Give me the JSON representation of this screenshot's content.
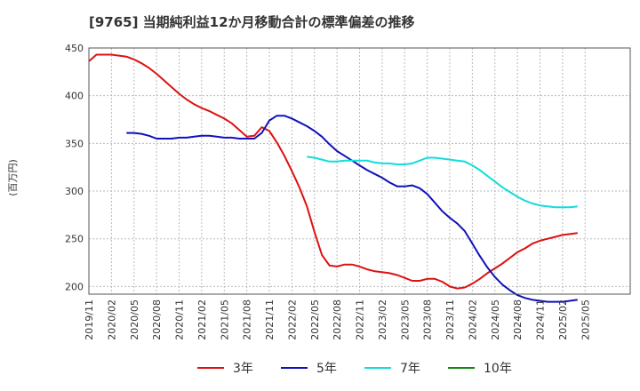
{
  "chart_data": {
    "type": "line",
    "title": "[9765]  当期純利益12か月移動合計の標準偏差の推移",
    "ylabel": "(百万円)",
    "xlabel": "",
    "ylim": [
      192,
      450
    ],
    "yticks": [
      200,
      250,
      300,
      350,
      400,
      450
    ],
    "ytick_labels": [
      "200",
      "250",
      "300",
      "350",
      "400",
      "450"
    ],
    "xlim": [
      0,
      72
    ],
    "x_tick_labels": [
      "2019/11",
      "2020/02",
      "2020/05",
      "2020/08",
      "2020/11",
      "2021/02",
      "2021/05",
      "2021/08",
      "2021/11",
      "2022/02",
      "2022/05",
      "2022/08",
      "2022/11",
      "2023/02",
      "2023/05",
      "2023/08",
      "2023/11",
      "2024/02",
      "2024/05",
      "2024/08",
      "2024/11",
      "2025/02",
      "2025/05"
    ],
    "grid": true,
    "legend_position": "bottom",
    "series": [
      {
        "name": "3年",
        "color": "#dd1111",
        "x": [
          0,
          1,
          2,
          3,
          4,
          5,
          6,
          7,
          8,
          9,
          10,
          11,
          12,
          13,
          14,
          15,
          16,
          17,
          18,
          19,
          20,
          21,
          22,
          23,
          24,
          25,
          26,
          27,
          28,
          29,
          30,
          31,
          32,
          33,
          34,
          35,
          36,
          37,
          38,
          39,
          40,
          41,
          42,
          43,
          44,
          45,
          46,
          47,
          48,
          49,
          50,
          51,
          52,
          53,
          54,
          55,
          56,
          57,
          58,
          59,
          60,
          61,
          62,
          63,
          64,
          65
        ],
        "values": [
          436,
          443,
          443,
          443,
          442,
          441,
          438,
          434,
          429,
          423,
          416,
          409,
          402,
          396,
          391,
          387,
          384,
          380,
          376,
          371,
          364,
          357,
          358,
          367,
          363,
          351,
          337,
          321,
          304,
          284,
          257,
          233,
          222,
          221,
          223,
          223,
          221,
          218,
          216,
          215,
          214,
          212,
          209,
          206,
          206,
          208,
          208,
          205,
          200,
          198,
          199,
          203,
          208,
          214,
          219,
          224,
          230,
          236,
          240,
          245,
          248,
          250,
          252,
          254,
          255,
          256
        ]
      },
      {
        "name": "5年",
        "color": "#1111bb",
        "x": [
          5,
          6,
          7,
          8,
          9,
          10,
          11,
          12,
          13,
          14,
          15,
          16,
          17,
          18,
          19,
          20,
          21,
          22,
          23,
          24,
          25,
          26,
          27,
          28,
          29,
          30,
          31,
          32,
          33,
          34,
          35,
          36,
          37,
          38,
          39,
          40,
          41,
          42,
          43,
          44,
          45,
          46,
          47,
          48,
          49,
          50,
          51,
          52,
          53,
          54,
          55,
          56,
          57,
          58,
          59,
          60,
          61,
          62,
          63,
          64,
          65
        ],
        "values": [
          361,
          361,
          360,
          358,
          355,
          355,
          355,
          356,
          356,
          357,
          358,
          358,
          357,
          356,
          356,
          355,
          355,
          355,
          361,
          374,
          379,
          379,
          376,
          372,
          368,
          363,
          357,
          349,
          342,
          337,
          332,
          327,
          322,
          318,
          314,
          309,
          305,
          305,
          306,
          303,
          297,
          288,
          279,
          272,
          266,
          258,
          245,
          232,
          220,
          210,
          202,
          196,
          191,
          188,
          186,
          185,
          184,
          184,
          184,
          185,
          186
        ]
      },
      {
        "name": "7年",
        "color": "#11dddd",
        "x": [
          29,
          30,
          31,
          32,
          33,
          34,
          35,
          36,
          37,
          38,
          39,
          40,
          41,
          42,
          43,
          44,
          45,
          46,
          47,
          48,
          49,
          50,
          51,
          52,
          53,
          54,
          55,
          56,
          57,
          58,
          59,
          60,
          61,
          62,
          63,
          64,
          65
        ],
        "values": [
          336,
          335,
          333,
          331,
          331,
          332,
          332,
          332,
          332,
          330,
          329,
          329,
          328,
          328,
          329,
          332,
          335,
          335,
          334,
          333,
          332,
          331,
          327,
          322,
          316,
          310,
          304,
          299,
          294,
          290,
          287,
          285,
          284,
          283,
          283,
          283,
          284
        ]
      },
      {
        "name": "10年",
        "color": "#118811",
        "x": [],
        "values": []
      }
    ]
  }
}
